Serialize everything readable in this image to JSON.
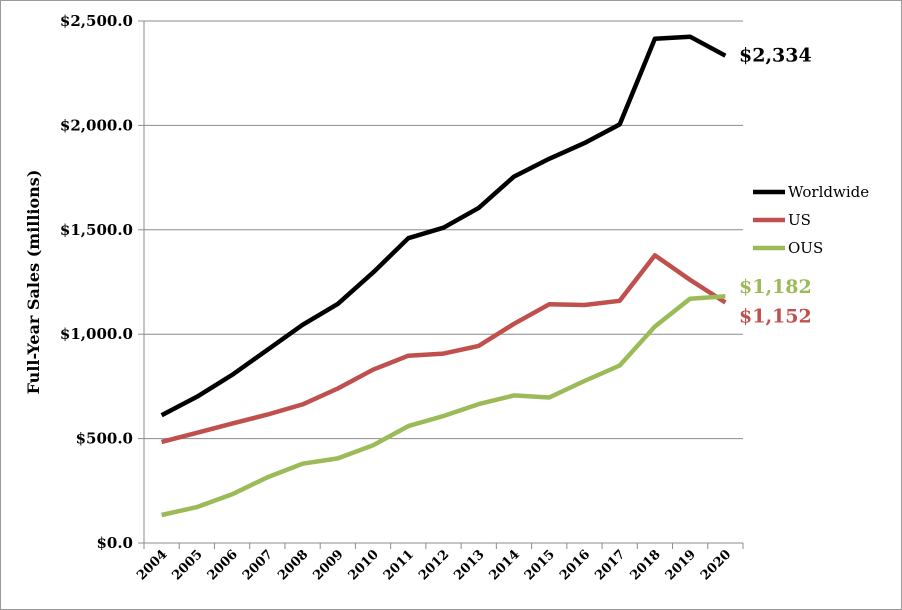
{
  "chart_data": {
    "type": "line",
    "title": "",
    "xlabel": "",
    "ylabel": "Full-Year Sales (millions)",
    "ylim": [
      0,
      2500
    ],
    "grid": true,
    "legend_position": "right",
    "y_ticks": [
      "$0.0",
      "$500.0",
      "$1,000.0",
      "$1,500.0",
      "$2,000.0",
      "$2,500.0"
    ],
    "y_tick_values": [
      0,
      500,
      1000,
      1500,
      2000,
      2500
    ],
    "categories": [
      "2004",
      "2005",
      "2006",
      "2007",
      "2008",
      "2009",
      "2010",
      "2011",
      "2012",
      "2013",
      "2014",
      "2015",
      "2016",
      "2017",
      "2018",
      "2019",
      "2020"
    ],
    "series": [
      {
        "name": "Worldwide",
        "color": "#000000",
        "values": [
          612,
          700,
          805,
          925,
          1045,
          1145,
          1295,
          1460,
          1510,
          1605,
          1755,
          1840,
          1915,
          2005,
          2415,
          2425,
          2334
        ],
        "end_label": "$2,334"
      },
      {
        "name": "US",
        "color": "#c0504d",
        "values": [
          484,
          528,
          572,
          615,
          664,
          740,
          830,
          897,
          907,
          944,
          1050,
          1143,
          1140,
          1160,
          1378,
          1260,
          1152
        ],
        "end_label": "$1,152"
      },
      {
        "name": "OUS",
        "color": "#9bbb59",
        "values": [
          134,
          172,
          233,
          314,
          380,
          405,
          468,
          560,
          608,
          665,
          707,
          697,
          776,
          850,
          1037,
          1170,
          1182
        ],
        "end_label": "$1,182"
      }
    ]
  }
}
